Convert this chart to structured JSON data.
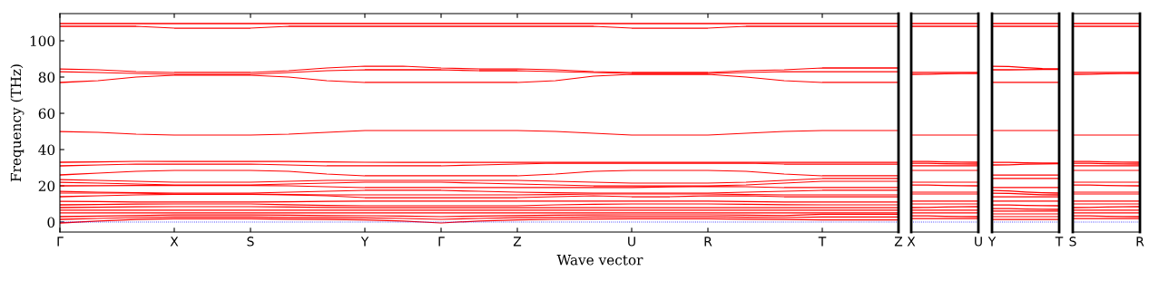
{
  "chart_data": [
    {
      "type": "line",
      "xlabel": "Wave vector",
      "ylabel": "Frequency (THz)",
      "color": "#ff0000",
      "line_style": "solid",
      "marker": "none",
      "grid": false,
      "legend": false,
      "categories": [
        "Γ",
        null,
        null,
        "X",
        null,
        "S",
        null,
        null,
        "Y",
        null,
        "Γ",
        null,
        "Z",
        null,
        null,
        "U",
        null,
        "R",
        null,
        null,
        "T",
        null,
        "Z"
      ],
      "ylim": [
        -5.5,
        115
      ],
      "yticks": [
        0,
        20,
        40,
        60,
        80,
        100
      ],
      "ref_lines": [
        {
          "axis": "y",
          "value": 0,
          "color": "#0000ff",
          "line_style": "dotted"
        }
      ],
      "series": [
        {
          "values": [
            109.5,
            109.5,
            109.5,
            109.5,
            109.5,
            109.5,
            109.5,
            109.5,
            109.5,
            109.5,
            109.5,
            109.5,
            109.5,
            109.5,
            109.5,
            109.5,
            109.5,
            109.5,
            109.5,
            109.5,
            109.5,
            109.5,
            109.5
          ]
        },
        {
          "values": [
            108,
            108,
            108,
            107,
            107,
            107,
            108,
            108,
            108,
            108,
            108,
            108,
            108,
            108,
            108,
            107,
            107,
            107,
            108,
            108,
            108,
            108,
            108
          ]
        },
        {
          "values": [
            84.5,
            84,
            83,
            82.5,
            82.5,
            82.5,
            83.5,
            85,
            86,
            86,
            85,
            84.5,
            84.5,
            84,
            83,
            82.5,
            82.5,
            82.5,
            83.5,
            84,
            85,
            85,
            85
          ]
        },
        {
          "values": [
            83,
            82.5,
            82,
            81.5,
            81.5,
            81.5,
            82.5,
            83.5,
            84,
            84,
            84,
            83.5,
            83.5,
            83,
            82.5,
            82,
            82,
            82,
            82.5,
            83,
            83,
            83,
            83
          ]
        },
        {
          "values": [
            77,
            78,
            80,
            81,
            81,
            81,
            80,
            78,
            77,
            77,
            77,
            77,
            77,
            78,
            80.5,
            81.5,
            81.5,
            81.5,
            80,
            78,
            77,
            77,
            77
          ]
        },
        {
          "values": [
            50,
            49.5,
            48.5,
            48,
            48,
            48,
            48.5,
            49.5,
            50.5,
            50.5,
            50.5,
            50.5,
            50.5,
            50,
            49,
            48,
            48,
            48,
            49,
            50,
            50.5,
            50.5,
            50.5
          ]
        },
        {
          "values": [
            33,
            33.2,
            33.5,
            33.5,
            33.5,
            33.5,
            33.5,
            33.2,
            33,
            33,
            33,
            33,
            33,
            33,
            33,
            33,
            33,
            33,
            33,
            33,
            33,
            33,
            33
          ]
        },
        {
          "values": [
            31,
            31.5,
            32,
            32,
            32,
            32,
            31.5,
            31,
            31,
            31,
            31,
            31.5,
            32,
            32.5,
            32.5,
            32.5,
            32.5,
            32.5,
            32.5,
            32,
            32,
            32,
            32
          ]
        },
        {
          "values": [
            26,
            27,
            28,
            28.5,
            28.5,
            28.5,
            28,
            26.5,
            25.5,
            25.5,
            25.5,
            25.5,
            25.5,
            26.5,
            28,
            28.5,
            28.5,
            28.5,
            28,
            26.5,
            25.5,
            25.5,
            25.5
          ]
        },
        {
          "values": [
            23.5,
            23,
            22.5,
            22,
            22,
            22,
            22.5,
            23,
            23,
            23,
            23,
            23,
            23,
            22.5,
            22,
            21.5,
            21.5,
            21.5,
            22,
            23,
            24,
            24,
            24
          ]
        },
        {
          "values": [
            22,
            21.5,
            21,
            20.5,
            20.5,
            20.5,
            21,
            21.5,
            22,
            22,
            22,
            21.5,
            21,
            20.5,
            20,
            20,
            20,
            20,
            20.5,
            21.5,
            22.5,
            22.5,
            22.5
          ]
        },
        {
          "values": [
            20,
            20.1,
            20.2,
            20.2,
            20.2,
            20.2,
            20,
            19.5,
            19,
            19,
            19,
            19,
            19,
            19,
            19,
            19,
            19.4,
            19.7,
            19.5,
            19,
            19,
            19,
            19
          ]
        },
        {
          "values": [
            17,
            16.5,
            16.2,
            16,
            16,
            16,
            16.5,
            17,
            17.5,
            17.5,
            17.5,
            17,
            16.5,
            16.2,
            16,
            16,
            16,
            16,
            16.5,
            17,
            17.5,
            17.5,
            17.5
          ]
        },
        {
          "values": [
            16,
            16,
            16,
            15.5,
            15.5,
            15.5,
            15.2,
            15,
            15,
            15,
            15,
            15,
            15,
            15.2,
            15.5,
            15.5,
            15.5,
            15.5,
            15.2,
            15,
            15,
            15,
            15
          ]
        },
        {
          "values": [
            14,
            14.5,
            15,
            15.3,
            15.3,
            15.3,
            15,
            14.5,
            13.5,
            13.5,
            13.5,
            13.5,
            13.5,
            14,
            14.5,
            14,
            14,
            14.5,
            14.5,
            14,
            14,
            14,
            14
          ]
        },
        {
          "values": [
            11.5,
            11.3,
            11.1,
            11,
            11,
            11,
            11.2,
            11.4,
            11.5,
            11.5,
            11.5,
            11.5,
            11.5,
            11.5,
            11.5,
            11.5,
            11.5,
            11.5,
            11.3,
            11.1,
            11,
            11,
            11
          ]
        },
        {
          "values": [
            9.5,
            9.7,
            9.9,
            10,
            10,
            10,
            9.6,
            9.2,
            9,
            9,
            9,
            9,
            9,
            9.5,
            9.8,
            10,
            10,
            10,
            9.8,
            9.6,
            9.5,
            9.5,
            9.5
          ]
        },
        {
          "values": [
            8,
            8.2,
            8.4,
            8.5,
            8.5,
            8.5,
            8.3,
            8.1,
            8,
            8,
            8,
            8,
            8,
            8,
            8,
            8,
            8,
            8,
            8,
            8,
            8,
            8,
            8
          ]
        },
        {
          "values": [
            6.5,
            6.5,
            6.5,
            6.5,
            6.5,
            6.5,
            6.5,
            6.5,
            6.5,
            6.5,
            6.5,
            6.5,
            6.5,
            6.5,
            6.5,
            6.5,
            6.5,
            6.5,
            6.5,
            6.5,
            6.5,
            6.5,
            6.5
          ]
        },
        {
          "values": [
            5,
            5,
            5,
            5,
            5,
            5,
            5,
            5,
            5,
            5,
            5,
            5,
            5,
            5,
            5,
            5,
            5,
            5,
            5,
            5,
            5,
            5,
            5
          ]
        },
        {
          "values": [
            3,
            3.3,
            3.6,
            3.9,
            3.9,
            3.9,
            3.8,
            3.6,
            3.5,
            3.3,
            3,
            3.3,
            3.6,
            3.8,
            3.9,
            4,
            4,
            4,
            3.8,
            3.6,
            4.3,
            4.3,
            4.3
          ]
        },
        {
          "values": [
            1.5,
            2,
            2.5,
            2.8,
            2.8,
            2.8,
            2.6,
            2.4,
            2.3,
            2,
            1.5,
            2,
            2.4,
            2.6,
            2.8,
            2.9,
            2.9,
            2.9,
            2.7,
            2.5,
            2.8,
            2.8,
            2.8
          ]
        },
        {
          "values": [
            -0.5,
            0.6,
            1.4,
            1.8,
            1.8,
            1.8,
            1.6,
            1.4,
            1.2,
            0.6,
            -0.5,
            0.6,
            1.2,
            1.5,
            1.7,
            1.8,
            1.8,
            1.8,
            1.6,
            1.4,
            1.2,
            1.2,
            1.2
          ]
        }
      ]
    },
    {
      "type": "line",
      "color": "#ff0000",
      "line_style": "solid",
      "marker": "none",
      "grid": false,
      "legend": false,
      "tick_labels": "x",
      "categories": [
        "X",
        null,
        null,
        null,
        "U"
      ],
      "ylim": [
        -5.5,
        115
      ],
      "yticks": [
        0,
        20,
        40,
        60,
        80,
        100
      ],
      "ref_lines": [
        {
          "axis": "y",
          "value": 0,
          "color": "#0000ff",
          "line_style": "dotted"
        }
      ],
      "series": [
        {
          "values": [
            109.5,
            109.5,
            109.5,
            109.5,
            109.5
          ]
        },
        {
          "values": [
            108,
            108,
            108,
            108,
            108
          ]
        },
        {
          "values": [
            82.5,
            82.5,
            82.5,
            82.5,
            82.5
          ]
        },
        {
          "values": [
            81.5,
            81.6,
            81.8,
            81.9,
            82
          ]
        },
        {
          "values": [
            48,
            48,
            48,
            48,
            48
          ]
        },
        {
          "values": [
            33.5,
            33.4,
            33.2,
            33.1,
            33
          ]
        },
        {
          "values": [
            32.5,
            32.4,
            32.2,
            32.1,
            32
          ]
        },
        {
          "values": [
            31,
            31,
            31,
            31,
            31
          ]
        },
        {
          "values": [
            28.5,
            28.5,
            28.5,
            28.5,
            28.5
          ]
        },
        {
          "values": [
            22,
            22,
            22,
            22,
            22
          ]
        },
        {
          "values": [
            20.5,
            20.4,
            20.2,
            20.1,
            20
          ]
        },
        {
          "values": [
            16.5,
            16.5,
            16.5,
            16.5,
            16.5
          ]
        },
        {
          "values": [
            15.5,
            15.5,
            15.5,
            15.5,
            15.5
          ]
        },
        {
          "values": [
            11.5,
            11.5,
            11.5,
            11.5,
            11.5
          ]
        },
        {
          "values": [
            10,
            10,
            10,
            10,
            10
          ]
        },
        {
          "values": [
            8,
            8.1,
            8.3,
            8.4,
            8.5
          ]
        },
        {
          "values": [
            6.5,
            6.5,
            6.5,
            6.5,
            6.5
          ]
        },
        {
          "values": [
            5,
            5,
            5,
            5,
            5
          ]
        },
        {
          "values": [
            3.5,
            3.4,
            3.2,
            3.1,
            3
          ]
        },
        {
          "values": [
            2,
            2,
            2,
            2,
            2
          ]
        }
      ]
    },
    {
      "type": "line",
      "color": "#ff0000",
      "line_style": "solid",
      "marker": "none",
      "grid": false,
      "legend": false,
      "tick_labels": "x",
      "categories": [
        "Y",
        null,
        null,
        null,
        "T"
      ],
      "ylim": [
        -5.5,
        115
      ],
      "yticks": [
        0,
        20,
        40,
        60,
        80,
        100
      ],
      "ref_lines": [
        {
          "axis": "y",
          "value": 0,
          "color": "#0000ff",
          "line_style": "dotted"
        }
      ],
      "series": [
        {
          "values": [
            109.5,
            109.5,
            109.5,
            109.5,
            109.5
          ]
        },
        {
          "values": [
            108,
            108,
            108,
            108,
            108
          ]
        },
        {
          "values": [
            86,
            85.8,
            85.2,
            84.7,
            84.5
          ]
        },
        {
          "values": [
            84,
            84,
            84.1,
            84.2,
            84.2
          ]
        },
        {
          "values": [
            77,
            77,
            77,
            77,
            77
          ]
        },
        {
          "values": [
            50.5,
            50.5,
            50.5,
            50.5,
            50.5
          ]
        },
        {
          "values": [
            33,
            32.9,
            32.7,
            32.6,
            32.5
          ]
        },
        {
          "values": [
            31.5,
            31.6,
            31.9,
            32.1,
            32.2
          ]
        },
        {
          "values": [
            26,
            26,
            26,
            26,
            26
          ]
        },
        {
          "values": [
            24,
            24,
            24,
            24,
            24
          ]
        },
        {
          "values": [
            19,
            19,
            19,
            19,
            19
          ]
        },
        {
          "values": [
            17.5,
            17.2,
            16.6,
            16.2,
            16
          ]
        },
        {
          "values": [
            16,
            15.8,
            15.4,
            15.1,
            15
          ]
        },
        {
          "values": [
            14,
            14,
            14,
            14,
            14
          ]
        },
        {
          "values": [
            11.5,
            11.5,
            11.5,
            11.5,
            11.5
          ]
        },
        {
          "values": [
            9.5,
            9.4,
            9.2,
            9.1,
            9
          ]
        },
        {
          "values": [
            7.5,
            7.4,
            7.2,
            7.1,
            7
          ]
        },
        {
          "values": [
            6,
            6,
            6,
            6,
            6
          ]
        },
        {
          "values": [
            4.5,
            4.5,
            4.5,
            4.5,
            4.5
          ]
        },
        {
          "values": [
            3,
            3,
            3,
            3,
            3
          ]
        },
        {
          "values": [
            1.5,
            1.5,
            1.5,
            1.5,
            1.5
          ]
        }
      ]
    },
    {
      "type": "line",
      "color": "#ff0000",
      "line_style": "solid",
      "marker": "none",
      "grid": false,
      "legend": false,
      "tick_labels": "x",
      "categories": [
        "S",
        null,
        null,
        null,
        "R"
      ],
      "ylim": [
        -5.5,
        115
      ],
      "yticks": [
        0,
        20,
        40,
        60,
        80,
        100
      ],
      "ref_lines": [
        {
          "axis": "y",
          "value": 0,
          "color": "#0000ff",
          "line_style": "dotted"
        }
      ],
      "series": [
        {
          "values": [
            109.5,
            109.5,
            109.5,
            109.5,
            109.5
          ]
        },
        {
          "values": [
            108,
            108,
            108,
            108,
            108
          ]
        },
        {
          "values": [
            82.5,
            82.5,
            82.5,
            82.5,
            82.5
          ]
        },
        {
          "values": [
            81.5,
            81.6,
            81.8,
            81.9,
            82
          ]
        },
        {
          "values": [
            48,
            48,
            48,
            48,
            48
          ]
        },
        {
          "values": [
            33.5,
            33.4,
            33.2,
            33.1,
            33
          ]
        },
        {
          "values": [
            32.5,
            32.4,
            32.2,
            32.1,
            32
          ]
        },
        {
          "values": [
            31,
            31,
            31,
            31,
            31
          ]
        },
        {
          "values": [
            28.5,
            28.5,
            28.5,
            28.5,
            28.5
          ]
        },
        {
          "values": [
            22,
            22,
            22,
            22,
            22
          ]
        },
        {
          "values": [
            20.5,
            20.4,
            20.2,
            20.1,
            20
          ]
        },
        {
          "values": [
            16.5,
            16.5,
            16.5,
            16.5,
            16.5
          ]
        },
        {
          "values": [
            15.5,
            15.5,
            15.5,
            15.5,
            15.5
          ]
        },
        {
          "values": [
            11.5,
            11.5,
            11.5,
            11.5,
            11.5
          ]
        },
        {
          "values": [
            10,
            10,
            10,
            10,
            10
          ]
        },
        {
          "values": [
            8,
            8.1,
            8.3,
            8.4,
            8.5
          ]
        },
        {
          "values": [
            6.5,
            6.5,
            6.5,
            6.5,
            6.5
          ]
        },
        {
          "values": [
            5,
            5,
            5,
            5,
            5
          ]
        },
        {
          "values": [
            3.5,
            3.4,
            3.2,
            3.1,
            3
          ]
        },
        {
          "values": [
            2,
            2,
            2,
            2,
            2
          ]
        }
      ]
    }
  ]
}
